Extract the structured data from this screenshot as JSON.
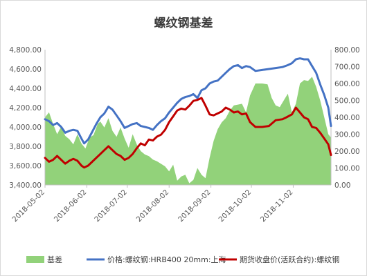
{
  "chart_data": {
    "type": "line",
    "title": "螺纹钢基差",
    "y_left": {
      "min": 3400,
      "max": 4800,
      "step": 200,
      "tick_labels": [
        "3,400.00",
        "3,600.00",
        "3,800.00",
        "4,000.00",
        "4,200.00",
        "4,400.00",
        "4,600.00",
        "4,800.00"
      ]
    },
    "y_right": {
      "min": 0,
      "max": 800,
      "step": 100,
      "tick_labels": [
        "0.00",
        "100.00",
        "200.00",
        "300.00",
        "400.00",
        "500.00",
        "600.00",
        "700.00",
        "800.00"
      ]
    },
    "x": {
      "start": "2018-05-02",
      "end": "2018-11-30",
      "tick_labels": [
        "2018-05-02",
        "2018-06-02",
        "2018-07-02",
        "2018-08-02",
        "2018-09-02",
        "2018-10-02",
        "2018-11-02"
      ]
    },
    "series": [
      {
        "name": "基差",
        "type": "area",
        "axis": "right",
        "color": "#92d27a",
        "values": [
          [
            "2018-05-02",
            400
          ],
          [
            "2018-05-05",
            430
          ],
          [
            "2018-05-08",
            360
          ],
          [
            "2018-05-11",
            300
          ],
          [
            "2018-05-14",
            345
          ],
          [
            "2018-05-17",
            290
          ],
          [
            "2018-05-20",
            270
          ],
          [
            "2018-05-23",
            240
          ],
          [
            "2018-05-26",
            300
          ],
          [
            "2018-05-29",
            245
          ],
          [
            "2018-06-01",
            215
          ],
          [
            "2018-06-04",
            280
          ],
          [
            "2018-06-07",
            295
          ],
          [
            "2018-06-10",
            360
          ],
          [
            "2018-06-12",
            375
          ],
          [
            "2018-06-15",
            340
          ],
          [
            "2018-06-18",
            395
          ],
          [
            "2018-06-21",
            320
          ],
          [
            "2018-06-24",
            285
          ],
          [
            "2018-06-27",
            340
          ],
          [
            "2018-06-30",
            275
          ],
          [
            "2018-07-03",
            220
          ],
          [
            "2018-07-06",
            300
          ],
          [
            "2018-07-09",
            240
          ],
          [
            "2018-07-12",
            200
          ],
          [
            "2018-07-15",
            180
          ],
          [
            "2018-07-18",
            170
          ],
          [
            "2018-07-21",
            150
          ],
          [
            "2018-07-24",
            140
          ],
          [
            "2018-07-27",
            125
          ],
          [
            "2018-07-30",
            110
          ],
          [
            "2018-08-02",
            80
          ],
          [
            "2018-08-05",
            120
          ],
          [
            "2018-08-08",
            25
          ],
          [
            "2018-08-11",
            50
          ],
          [
            "2018-08-14",
            60
          ],
          [
            "2018-08-17",
            10
          ],
          [
            "2018-08-20",
            30
          ],
          [
            "2018-08-23",
            100
          ],
          [
            "2018-08-26",
            60
          ],
          [
            "2018-08-29",
            40
          ],
          [
            "2018-09-01",
            160
          ],
          [
            "2018-09-04",
            260
          ],
          [
            "2018-09-07",
            330
          ],
          [
            "2018-09-10",
            370
          ],
          [
            "2018-09-13",
            395
          ],
          [
            "2018-09-16",
            440
          ],
          [
            "2018-09-19",
            470
          ],
          [
            "2018-09-22",
            475
          ],
          [
            "2018-09-25",
            480
          ],
          [
            "2018-09-28",
            430
          ],
          [
            "2018-10-01",
            530
          ],
          [
            "2018-10-05",
            600
          ],
          [
            "2018-10-10",
            600
          ],
          [
            "2018-10-14",
            595
          ],
          [
            "2018-10-17",
            515
          ],
          [
            "2018-10-20",
            470
          ],
          [
            "2018-10-23",
            460
          ],
          [
            "2018-10-26",
            500
          ],
          [
            "2018-10-29",
            540
          ],
          [
            "2018-11-01",
            430
          ],
          [
            "2018-11-04",
            480
          ],
          [
            "2018-11-07",
            600
          ],
          [
            "2018-11-10",
            620
          ],
          [
            "2018-11-13",
            615
          ],
          [
            "2018-11-16",
            640
          ],
          [
            "2018-11-19",
            580
          ],
          [
            "2018-11-22",
            500
          ],
          [
            "2018-11-25",
            400
          ],
          [
            "2018-11-28",
            300
          ],
          [
            "2018-11-30",
            280
          ]
        ]
      },
      {
        "name": "价格:螺纹钢:HRB400 20mm:上海",
        "type": "line",
        "axis": "left",
        "color": "#4472c4",
        "values": [
          [
            "2018-05-02",
            4080
          ],
          [
            "2018-05-05",
            4060
          ],
          [
            "2018-05-08",
            4020
          ],
          [
            "2018-05-11",
            4040
          ],
          [
            "2018-05-14",
            4000
          ],
          [
            "2018-05-17",
            3940
          ],
          [
            "2018-05-20",
            3960
          ],
          [
            "2018-05-23",
            3970
          ],
          [
            "2018-05-26",
            3960
          ],
          [
            "2018-05-29",
            3880
          ],
          [
            "2018-05-31",
            3830
          ],
          [
            "2018-06-03",
            3870
          ],
          [
            "2018-06-06",
            3950
          ],
          [
            "2018-06-09",
            4030
          ],
          [
            "2018-06-12",
            4100
          ],
          [
            "2018-06-15",
            4140
          ],
          [
            "2018-06-18",
            4210
          ],
          [
            "2018-06-21",
            4180
          ],
          [
            "2018-06-24",
            4120
          ],
          [
            "2018-06-27",
            4060
          ],
          [
            "2018-06-30",
            3990
          ],
          [
            "2018-07-03",
            4010
          ],
          [
            "2018-07-06",
            4030
          ],
          [
            "2018-07-09",
            4040
          ],
          [
            "2018-07-12",
            4010
          ],
          [
            "2018-07-15",
            4000
          ],
          [
            "2018-07-18",
            3990
          ],
          [
            "2018-07-21",
            3970
          ],
          [
            "2018-07-24",
            4020
          ],
          [
            "2018-07-27",
            4060
          ],
          [
            "2018-07-30",
            4090
          ],
          [
            "2018-08-02",
            4150
          ],
          [
            "2018-08-05",
            4200
          ],
          [
            "2018-08-08",
            4250
          ],
          [
            "2018-08-11",
            4290
          ],
          [
            "2018-08-14",
            4310
          ],
          [
            "2018-08-17",
            4320
          ],
          [
            "2018-08-20",
            4340
          ],
          [
            "2018-08-23",
            4300
          ],
          [
            "2018-08-26",
            4380
          ],
          [
            "2018-08-29",
            4400
          ],
          [
            "2018-09-01",
            4450
          ],
          [
            "2018-09-04",
            4470
          ],
          [
            "2018-09-07",
            4480
          ],
          [
            "2018-09-10",
            4520
          ],
          [
            "2018-09-13",
            4560
          ],
          [
            "2018-09-16",
            4600
          ],
          [
            "2018-09-19",
            4630
          ],
          [
            "2018-09-22",
            4640
          ],
          [
            "2018-09-25",
            4610
          ],
          [
            "2018-09-28",
            4630
          ],
          [
            "2018-10-01",
            4620
          ],
          [
            "2018-10-05",
            4580
          ],
          [
            "2018-10-10",
            4590
          ],
          [
            "2018-10-15",
            4600
          ],
          [
            "2018-10-20",
            4610
          ],
          [
            "2018-10-25",
            4620
          ],
          [
            "2018-10-29",
            4640
          ],
          [
            "2018-11-01",
            4660
          ],
          [
            "2018-11-04",
            4700
          ],
          [
            "2018-11-07",
            4710
          ],
          [
            "2018-11-10",
            4700
          ],
          [
            "2018-11-13",
            4700
          ],
          [
            "2018-11-16",
            4630
          ],
          [
            "2018-11-19",
            4560
          ],
          [
            "2018-11-22",
            4440
          ],
          [
            "2018-11-25",
            4330
          ],
          [
            "2018-11-28",
            4200
          ],
          [
            "2018-11-30",
            4010
          ]
        ]
      },
      {
        "name": "期货收盘价(活跃合约):螺纹钢",
        "type": "line",
        "axis": "left",
        "color": "#c00000",
        "values": [
          [
            "2018-05-02",
            3680
          ],
          [
            "2018-05-05",
            3640
          ],
          [
            "2018-05-08",
            3660
          ],
          [
            "2018-05-11",
            3700
          ],
          [
            "2018-05-14",
            3660
          ],
          [
            "2018-05-17",
            3620
          ],
          [
            "2018-05-20",
            3650
          ],
          [
            "2018-05-23",
            3670
          ],
          [
            "2018-05-26",
            3650
          ],
          [
            "2018-05-29",
            3600
          ],
          [
            "2018-05-31",
            3580
          ],
          [
            "2018-06-03",
            3600
          ],
          [
            "2018-06-06",
            3640
          ],
          [
            "2018-06-09",
            3680
          ],
          [
            "2018-06-12",
            3720
          ],
          [
            "2018-06-15",
            3760
          ],
          [
            "2018-06-18",
            3800
          ],
          [
            "2018-06-21",
            3760
          ],
          [
            "2018-06-24",
            3720
          ],
          [
            "2018-06-27",
            3700
          ],
          [
            "2018-06-30",
            3660
          ],
          [
            "2018-07-03",
            3680
          ],
          [
            "2018-07-06",
            3720
          ],
          [
            "2018-07-09",
            3780
          ],
          [
            "2018-07-12",
            3830
          ],
          [
            "2018-07-15",
            3810
          ],
          [
            "2018-07-18",
            3870
          ],
          [
            "2018-07-21",
            3860
          ],
          [
            "2018-07-24",
            3900
          ],
          [
            "2018-07-27",
            3920
          ],
          [
            "2018-07-30",
            3970
          ],
          [
            "2018-08-02",
            4050
          ],
          [
            "2018-08-05",
            4110
          ],
          [
            "2018-08-08",
            4170
          ],
          [
            "2018-08-11",
            4190
          ],
          [
            "2018-08-14",
            4180
          ],
          [
            "2018-08-17",
            4220
          ],
          [
            "2018-08-20",
            4270
          ],
          [
            "2018-08-23",
            4280
          ],
          [
            "2018-08-26",
            4300
          ],
          [
            "2018-08-29",
            4220
          ],
          [
            "2018-09-01",
            4130
          ],
          [
            "2018-09-04",
            4120
          ],
          [
            "2018-09-07",
            4140
          ],
          [
            "2018-09-10",
            4160
          ],
          [
            "2018-09-13",
            4200
          ],
          [
            "2018-09-16",
            4180
          ],
          [
            "2018-09-19",
            4150
          ],
          [
            "2018-09-22",
            4160
          ],
          [
            "2018-09-25",
            4130
          ],
          [
            "2018-09-28",
            4140
          ],
          [
            "2018-10-01",
            4050
          ],
          [
            "2018-10-05",
            4000
          ],
          [
            "2018-10-10",
            4000
          ],
          [
            "2018-10-15",
            4010
          ],
          [
            "2018-10-20",
            4070
          ],
          [
            "2018-10-25",
            4080
          ],
          [
            "2018-10-28",
            4100
          ],
          [
            "2018-11-01",
            4130
          ],
          [
            "2018-11-04",
            4200
          ],
          [
            "2018-11-07",
            4150
          ],
          [
            "2018-11-10",
            4100
          ],
          [
            "2018-11-13",
            4080
          ],
          [
            "2018-11-16",
            4000
          ],
          [
            "2018-11-19",
            3990
          ],
          [
            "2018-11-22",
            3940
          ],
          [
            "2018-11-25",
            3880
          ],
          [
            "2018-11-28",
            3820
          ],
          [
            "2018-11-30",
            3710
          ]
        ]
      }
    ],
    "grid": false,
    "legend": {
      "position": "bottom"
    }
  }
}
